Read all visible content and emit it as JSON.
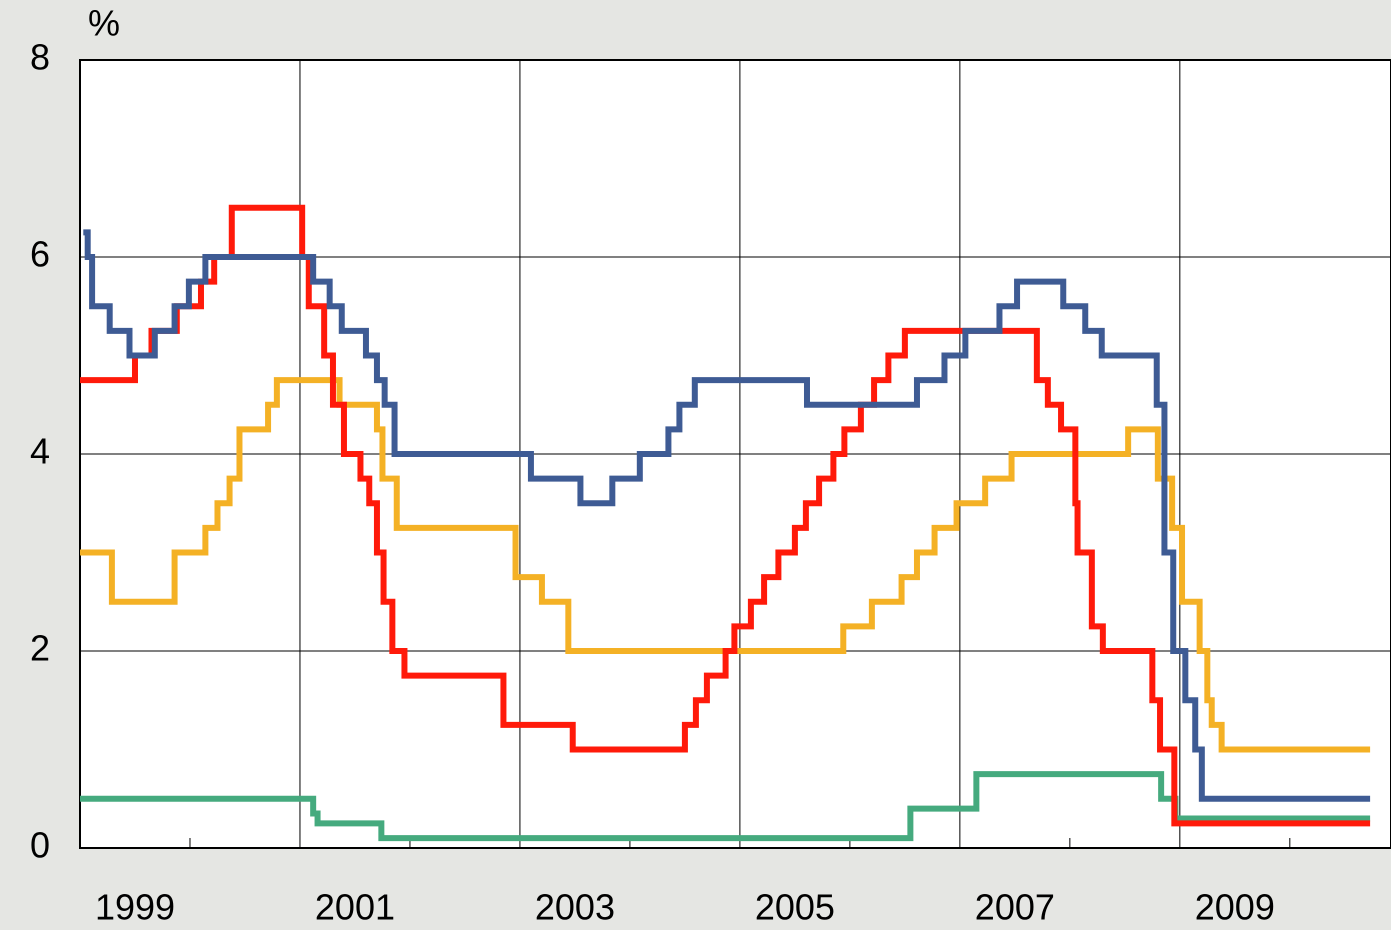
{
  "chart_data": {
    "type": "step",
    "y_label": "%",
    "xlim": [
      1999,
      2010.92
    ],
    "xticks": [
      1999,
      2001,
      2003,
      2005,
      2007,
      2009
    ],
    "ylim": [
      0,
      8
    ],
    "yticks": [
      0,
      2,
      4,
      6,
      8
    ],
    "grid": true,
    "series": [
      {
        "color": "#f4b125",
        "x": [
          1999,
          1999.29,
          1999.86,
          2000.14,
          2000.25,
          2000.36,
          2000.45,
          2000.71,
          2000.79,
          2001.36,
          2001.7,
          2001.75,
          2001.88,
          2002.96,
          2003.2,
          2003.44,
          2005.94,
          2006.2,
          2006.47,
          2006.61,
          2006.77,
          2006.97,
          2007.23,
          2007.47,
          2008.53,
          2008.8,
          2008.93,
          2009.02,
          2009.18,
          2009.25,
          2009.29,
          2009.38,
          2010.73
        ],
        "values": [
          3.0,
          2.5,
          3.0,
          3.25,
          3.5,
          3.75,
          4.25,
          4.5,
          4.75,
          4.5,
          4.25,
          3.75,
          3.25,
          2.75,
          2.5,
          2.0,
          2.25,
          2.5,
          2.75,
          3.0,
          3.25,
          3.5,
          3.75,
          4.0,
          4.25,
          3.75,
          3.25,
          2.5,
          2.0,
          1.5,
          1.25,
          1.0,
          1.0
        ]
      },
      {
        "color": "#45aa7e",
        "x": [
          1999,
          2001.12,
          2001.16,
          2001.74,
          2006.55,
          2007.15,
          2008.83,
          2008.96,
          2010.73
        ],
        "values": [
          0.5,
          0.35,
          0.25,
          0.1,
          0.4,
          0.75,
          0.5,
          0.3,
          0.3
        ]
      },
      {
        "color": "#ff1a0a",
        "x": [
          1999,
          1999.5,
          1999.65,
          1999.88,
          2000.1,
          2000.22,
          2000.38,
          2001.02,
          2001.08,
          2001.22,
          2001.3,
          2001.4,
          2001.55,
          2001.63,
          2001.7,
          2001.76,
          2001.84,
          2001.95,
          2002.85,
          2003.48,
          2004.5,
          2004.6,
          2004.7,
          2004.87,
          2004.95,
          2005.1,
          2005.22,
          2005.35,
          2005.5,
          2005.6,
          2005.72,
          2005.85,
          2005.95,
          2006.1,
          2006.22,
          2006.35,
          2006.5,
          2007.7,
          2007.8,
          2007.92,
          2008.05,
          2008.07,
          2008.2,
          2008.3,
          2008.75,
          2008.82,
          2008.95,
          2010.73
        ],
        "values": [
          4.75,
          5.0,
          5.25,
          5.5,
          5.75,
          6.0,
          6.5,
          6.0,
          5.5,
          5.0,
          4.5,
          4.0,
          3.75,
          3.5,
          3.0,
          2.5,
          2.0,
          1.75,
          1.25,
          1.0,
          1.25,
          1.5,
          1.75,
          2.0,
          2.25,
          2.5,
          2.75,
          3.0,
          3.25,
          3.5,
          3.75,
          4.0,
          4.25,
          4.5,
          4.75,
          5.0,
          5.25,
          4.75,
          4.5,
          4.25,
          3.5,
          3.0,
          2.25,
          2.0,
          1.5,
          1.0,
          0.25,
          0.25
        ]
      },
      {
        "color": "#3e5b94",
        "x": [
          1999.03,
          1999.07,
          1999.11,
          1999.27,
          1999.45,
          1999.68,
          1999.86,
          1999.99,
          2000.14,
          2001.12,
          2001.27,
          2001.38,
          2001.6,
          2001.7,
          2001.77,
          2001.86,
          2003.1,
          2003.55,
          2003.84,
          2004.09,
          2004.35,
          2004.45,
          2004.59,
          2005.61,
          2006.61,
          2006.86,
          2007.05,
          2007.36,
          2007.52,
          2007.94,
          2008.14,
          2008.29,
          2008.79,
          2008.86,
          2008.94,
          2009.05,
          2009.14,
          2009.2,
          2010.73
        ],
        "values": [
          6.25,
          6.0,
          5.5,
          5.25,
          5.0,
          5.25,
          5.5,
          5.75,
          6.0,
          5.75,
          5.5,
          5.25,
          5.0,
          4.75,
          4.5,
          4.0,
          3.75,
          3.5,
          3.75,
          4.0,
          4.25,
          4.5,
          4.75,
          4.5,
          4.75,
          5.0,
          5.25,
          5.5,
          5.75,
          5.5,
          5.25,
          5.0,
          4.5,
          3.0,
          2.0,
          1.5,
          1.0,
          0.5,
          0.5
        ]
      }
    ]
  }
}
